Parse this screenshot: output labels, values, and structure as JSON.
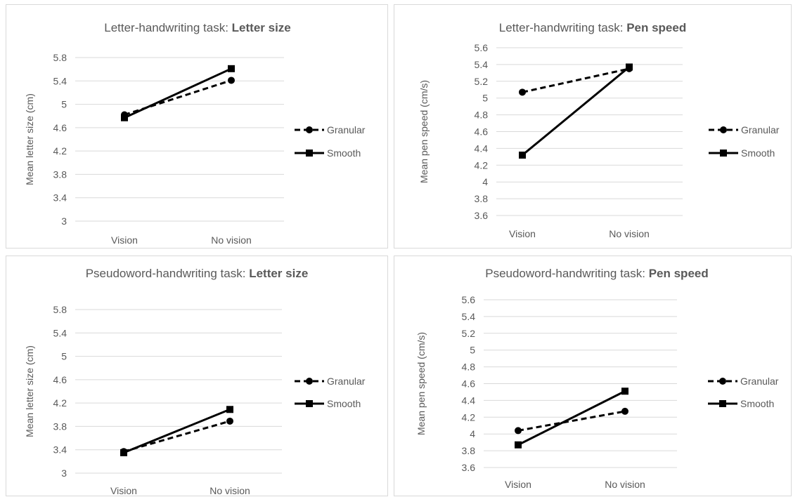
{
  "colors": {
    "series": "#000000",
    "grid": "#d9d9d9",
    "text": "#595959",
    "border": "#d9d9d9"
  },
  "chart_data": [
    {
      "type": "line",
      "title_prefix": "Letter-handwriting task: ",
      "title_bold": "Letter size",
      "xlabel": "",
      "ylabel": "Mean letter size (cm)",
      "categories": [
        "Vision",
        "No vision"
      ],
      "ylim": [
        3,
        5.8
      ],
      "yticks": [
        "3",
        "3.4",
        "3.8",
        "4.2",
        "4.6",
        "5",
        "5.4",
        "5.8"
      ],
      "grid": true,
      "legend": "right",
      "series": [
        {
          "name": "Granular",
          "style": "dashed",
          "marker": "circle",
          "values": [
            4.82,
            5.41
          ]
        },
        {
          "name": "Smooth",
          "style": "solid",
          "marker": "square",
          "values": [
            4.77,
            5.61
          ]
        }
      ]
    },
    {
      "type": "line",
      "title_prefix": "Letter-handwriting task: ",
      "title_bold": "Pen speed",
      "xlabel": "",
      "ylabel": "Mean pen speed (cm/s)",
      "categories": [
        "Vision",
        "No vision"
      ],
      "ylim": [
        3.6,
        5.6
      ],
      "yticks": [
        "3.6",
        "3.8",
        "4",
        "4.2",
        "4.4",
        "4.6",
        "4.8",
        "5",
        "5.2",
        "5.4",
        "5.6"
      ],
      "grid": true,
      "legend": "right",
      "series": [
        {
          "name": "Granular",
          "style": "dashed",
          "marker": "circle",
          "values": [
            5.07,
            5.35
          ]
        },
        {
          "name": "Smooth",
          "style": "solid",
          "marker": "square",
          "values": [
            4.32,
            5.37
          ]
        }
      ]
    },
    {
      "type": "line",
      "title_prefix": "Pseudoword-handwriting task: ",
      "title_bold": "Letter size",
      "xlabel": "",
      "ylabel": "Mean letter size (cm)",
      "categories": [
        "Vision",
        "No vision"
      ],
      "ylim": [
        3,
        5.8
      ],
      "yticks": [
        "3",
        "3.4",
        "3.8",
        "4.2",
        "4.6",
        "5",
        "5.4",
        "5.8"
      ],
      "grid": true,
      "legend": "right",
      "series": [
        {
          "name": "Granular",
          "style": "dashed",
          "marker": "circle",
          "values": [
            3.37,
            3.89
          ]
        },
        {
          "name": "Smooth",
          "style": "solid",
          "marker": "square",
          "values": [
            3.35,
            4.09
          ]
        }
      ]
    },
    {
      "type": "line",
      "title_prefix": "Pseudoword-handwriting task: ",
      "title_bold": "Pen speed",
      "xlabel": "",
      "ylabel": "Mean pen speed (cm/s)",
      "categories": [
        "Vision",
        "No vision"
      ],
      "ylim": [
        3.6,
        5.6
      ],
      "yticks": [
        "3.6",
        "3.8",
        "4",
        "4.2",
        "4.4",
        "4.6",
        "4.8",
        "5",
        "5.2",
        "5.4",
        "5.6"
      ],
      "grid": true,
      "legend": "right",
      "series": [
        {
          "name": "Granular",
          "style": "dashed",
          "marker": "circle",
          "values": [
            4.04,
            4.27
          ]
        },
        {
          "name": "Smooth",
          "style": "solid",
          "marker": "square",
          "values": [
            3.87,
            4.51
          ]
        }
      ]
    }
  ]
}
